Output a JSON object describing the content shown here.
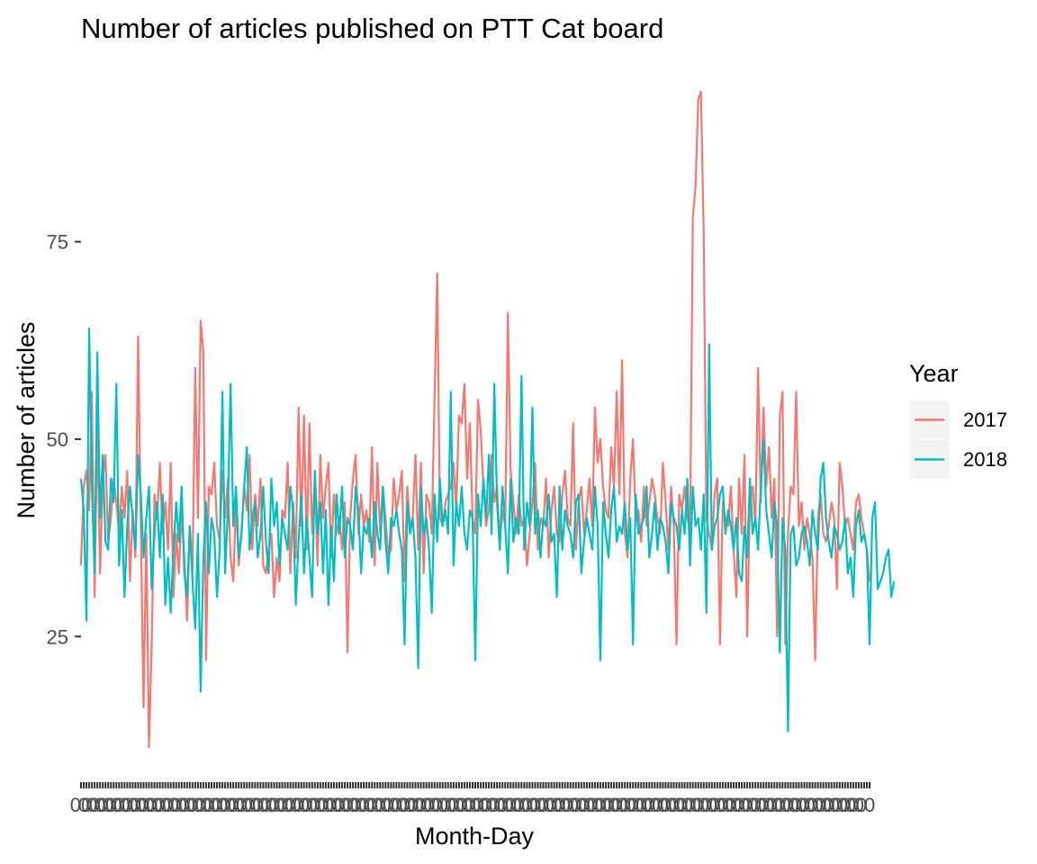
{
  "chart_data": {
    "type": "line",
    "title": "Number of articles published on PTT Cat board",
    "xlabel": "Month-Day",
    "ylabel": "Number of articles",
    "ylim": [
      8.5,
      96.5
    ],
    "yticks": [
      25,
      50,
      75
    ],
    "x_axis": "categorical month-day (Jan-01 to Dec-31), tick labels overlap and are illegible",
    "legend": {
      "title": "Year",
      "placement": "right"
    },
    "series": [
      {
        "name": "2017",
        "color": "#F8766D",
        "values": [
          34,
          44,
          46,
          41,
          56,
          30,
          52,
          33,
          45,
          48,
          37,
          40,
          45,
          42,
          38,
          44,
          40,
          46,
          32,
          41,
          35,
          63,
          39,
          16,
          38,
          11,
          24,
          43,
          40,
          47,
          38,
          42,
          36,
          47,
          30,
          38,
          33,
          41,
          35,
          27,
          39,
          33,
          59,
          40,
          65,
          61,
          22,
          44,
          43,
          47,
          39,
          37,
          46,
          40,
          45,
          35,
          32,
          42,
          34,
          38,
          44,
          41,
          48,
          36,
          43,
          39,
          45,
          34,
          33,
          36,
          38,
          30,
          35,
          32,
          41,
          40,
          47,
          33,
          42,
          35,
          54,
          39,
          53,
          36,
          52,
          38,
          45,
          34,
          48,
          40,
          44,
          47,
          35,
          43,
          38,
          40,
          36,
          42,
          23,
          40,
          45,
          48,
          38,
          43,
          39,
          41,
          37,
          49,
          34,
          47,
          38,
          44,
          40,
          35,
          36,
          45,
          41,
          43,
          46,
          32,
          44,
          39,
          40,
          48,
          36,
          47,
          33,
          43,
          42,
          38,
          55,
          71,
          40,
          39,
          42,
          43,
          44,
          47,
          41,
          53,
          52,
          57,
          45,
          52,
          40,
          38,
          55,
          51,
          44,
          39,
          41,
          48,
          42,
          44,
          37,
          41,
          39,
          66,
          46,
          42,
          38,
          43,
          39,
          40,
          34,
          38,
          42,
          47,
          36,
          40,
          39,
          45,
          35,
          41,
          44,
          38,
          37,
          43,
          46,
          40,
          39,
          52,
          36,
          42,
          44,
          38,
          41,
          45,
          39,
          54,
          47,
          50,
          44,
          41,
          40,
          49,
          44,
          56,
          43,
          60,
          38,
          35,
          45,
          50,
          40,
          41,
          37,
          44,
          39,
          42,
          45,
          43,
          40,
          38,
          47,
          42,
          36,
          44,
          39,
          24,
          43,
          41,
          44,
          40,
          38,
          78,
          82,
          93,
          94,
          76,
          40,
          38,
          36,
          43,
          45,
          24,
          42,
          40,
          39,
          44,
          36,
          30,
          45,
          38,
          48,
          25,
          42,
          44,
          39,
          59,
          42,
          54,
          44,
          49,
          40,
          45,
          25,
          53,
          56,
          24,
          38,
          44,
          43,
          56,
          39,
          42,
          36,
          40,
          38,
          35,
          22,
          40,
          43,
          38,
          37,
          39,
          42,
          40,
          31,
          47,
          44,
          39,
          40,
          38,
          36,
          42,
          43,
          40,
          38,
          36,
          32
        ]
      },
      {
        "name": "2018",
        "color": "#00BFC4",
        "values": [
          45,
          41,
          27,
          64,
          44,
          33,
          61,
          40,
          48,
          37,
          36,
          45,
          42,
          57,
          34,
          41,
          30,
          39,
          44,
          40,
          36,
          48,
          43,
          35,
          40,
          44,
          31,
          38,
          42,
          35,
          43,
          29,
          35,
          28,
          36,
          42,
          37,
          44,
          33,
          30,
          39,
          32,
          26,
          38,
          18,
          35,
          42,
          33,
          40,
          38,
          30,
          36,
          56,
          33,
          41,
          57,
          39,
          44,
          35,
          38,
          44,
          49,
          36,
          40,
          42,
          35,
          38,
          44,
          37,
          33,
          45,
          39,
          42,
          34,
          40,
          38,
          36,
          44,
          41,
          29,
          37,
          43,
          33,
          40,
          35,
          30,
          46,
          38,
          42,
          33,
          41,
          29,
          39,
          32,
          43,
          38,
          44,
          35,
          40,
          39,
          36,
          44,
          41,
          33,
          39,
          38,
          40,
          35,
          42,
          38,
          36,
          44,
          37,
          33,
          40,
          39,
          41,
          38,
          36,
          24,
          42,
          38,
          40,
          35,
          21,
          44,
          38,
          40,
          36,
          28,
          43,
          37,
          45,
          39,
          41,
          38,
          56,
          34,
          42,
          39,
          44,
          38,
          36,
          41,
          40,
          22,
          43,
          39,
          45,
          40,
          48,
          38,
          57,
          42,
          36,
          44,
          39,
          33,
          45,
          37,
          40,
          38,
          58,
          36,
          42,
          39,
          54,
          38,
          41,
          35,
          40,
          39,
          43,
          37,
          38,
          30,
          44,
          36,
          41,
          39,
          38,
          35,
          42,
          43,
          33,
          37,
          40,
          38,
          36,
          44,
          39,
          22,
          42,
          38,
          35,
          41,
          44,
          37,
          39,
          38,
          42,
          36,
          40,
          24,
          43,
          38,
          39,
          40,
          44,
          35,
          38,
          42,
          36,
          40,
          39,
          37,
          33,
          42,
          40,
          39,
          36,
          41,
          38,
          45,
          34,
          44,
          39,
          40,
          36,
          43,
          28,
          62,
          36,
          39,
          40,
          43,
          44,
          38,
          41,
          39,
          36,
          40,
          33,
          32,
          39,
          35,
          45,
          38,
          40,
          36,
          44,
          50,
          41,
          38,
          35,
          42,
          39,
          23,
          40,
          36,
          13,
          38,
          39,
          34,
          35,
          38,
          39,
          37,
          34,
          41,
          38,
          36,
          45,
          47,
          40,
          37,
          35,
          39,
          38,
          36,
          37,
          40,
          33,
          35,
          30,
          39,
          41,
          37,
          38,
          36,
          24,
          40,
          42,
          31,
          32,
          33,
          35,
          36,
          30,
          32
        ]
      }
    ]
  }
}
